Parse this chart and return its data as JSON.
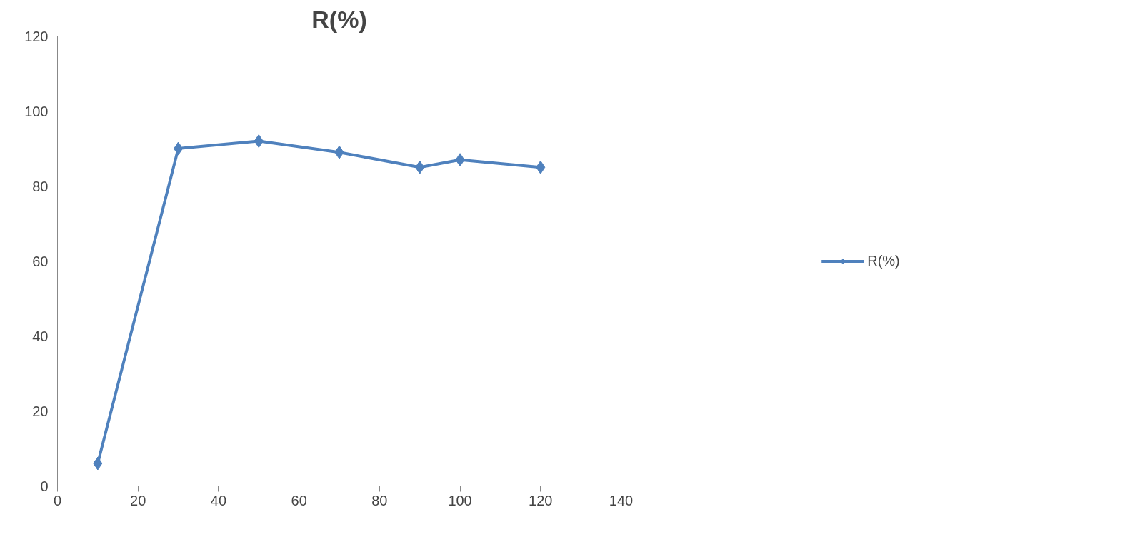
{
  "chart_data": {
    "type": "line",
    "title": "R(%)",
    "x": [
      10,
      30,
      50,
      70,
      90,
      100,
      120
    ],
    "series": [
      {
        "name": "R(%)",
        "color": "#4f81bd",
        "values": [
          6,
          90,
          92,
          89,
          85,
          87,
          85
        ]
      }
    ],
    "xlim": [
      0,
      140
    ],
    "xticks": [
      0,
      20,
      40,
      60,
      80,
      100,
      120,
      140
    ],
    "ylim": [
      0,
      120
    ],
    "yticks": [
      0,
      20,
      40,
      60,
      80,
      100,
      120
    ],
    "grid": false,
    "legend": "right",
    "marker": "diamond",
    "line_style": "solid"
  }
}
